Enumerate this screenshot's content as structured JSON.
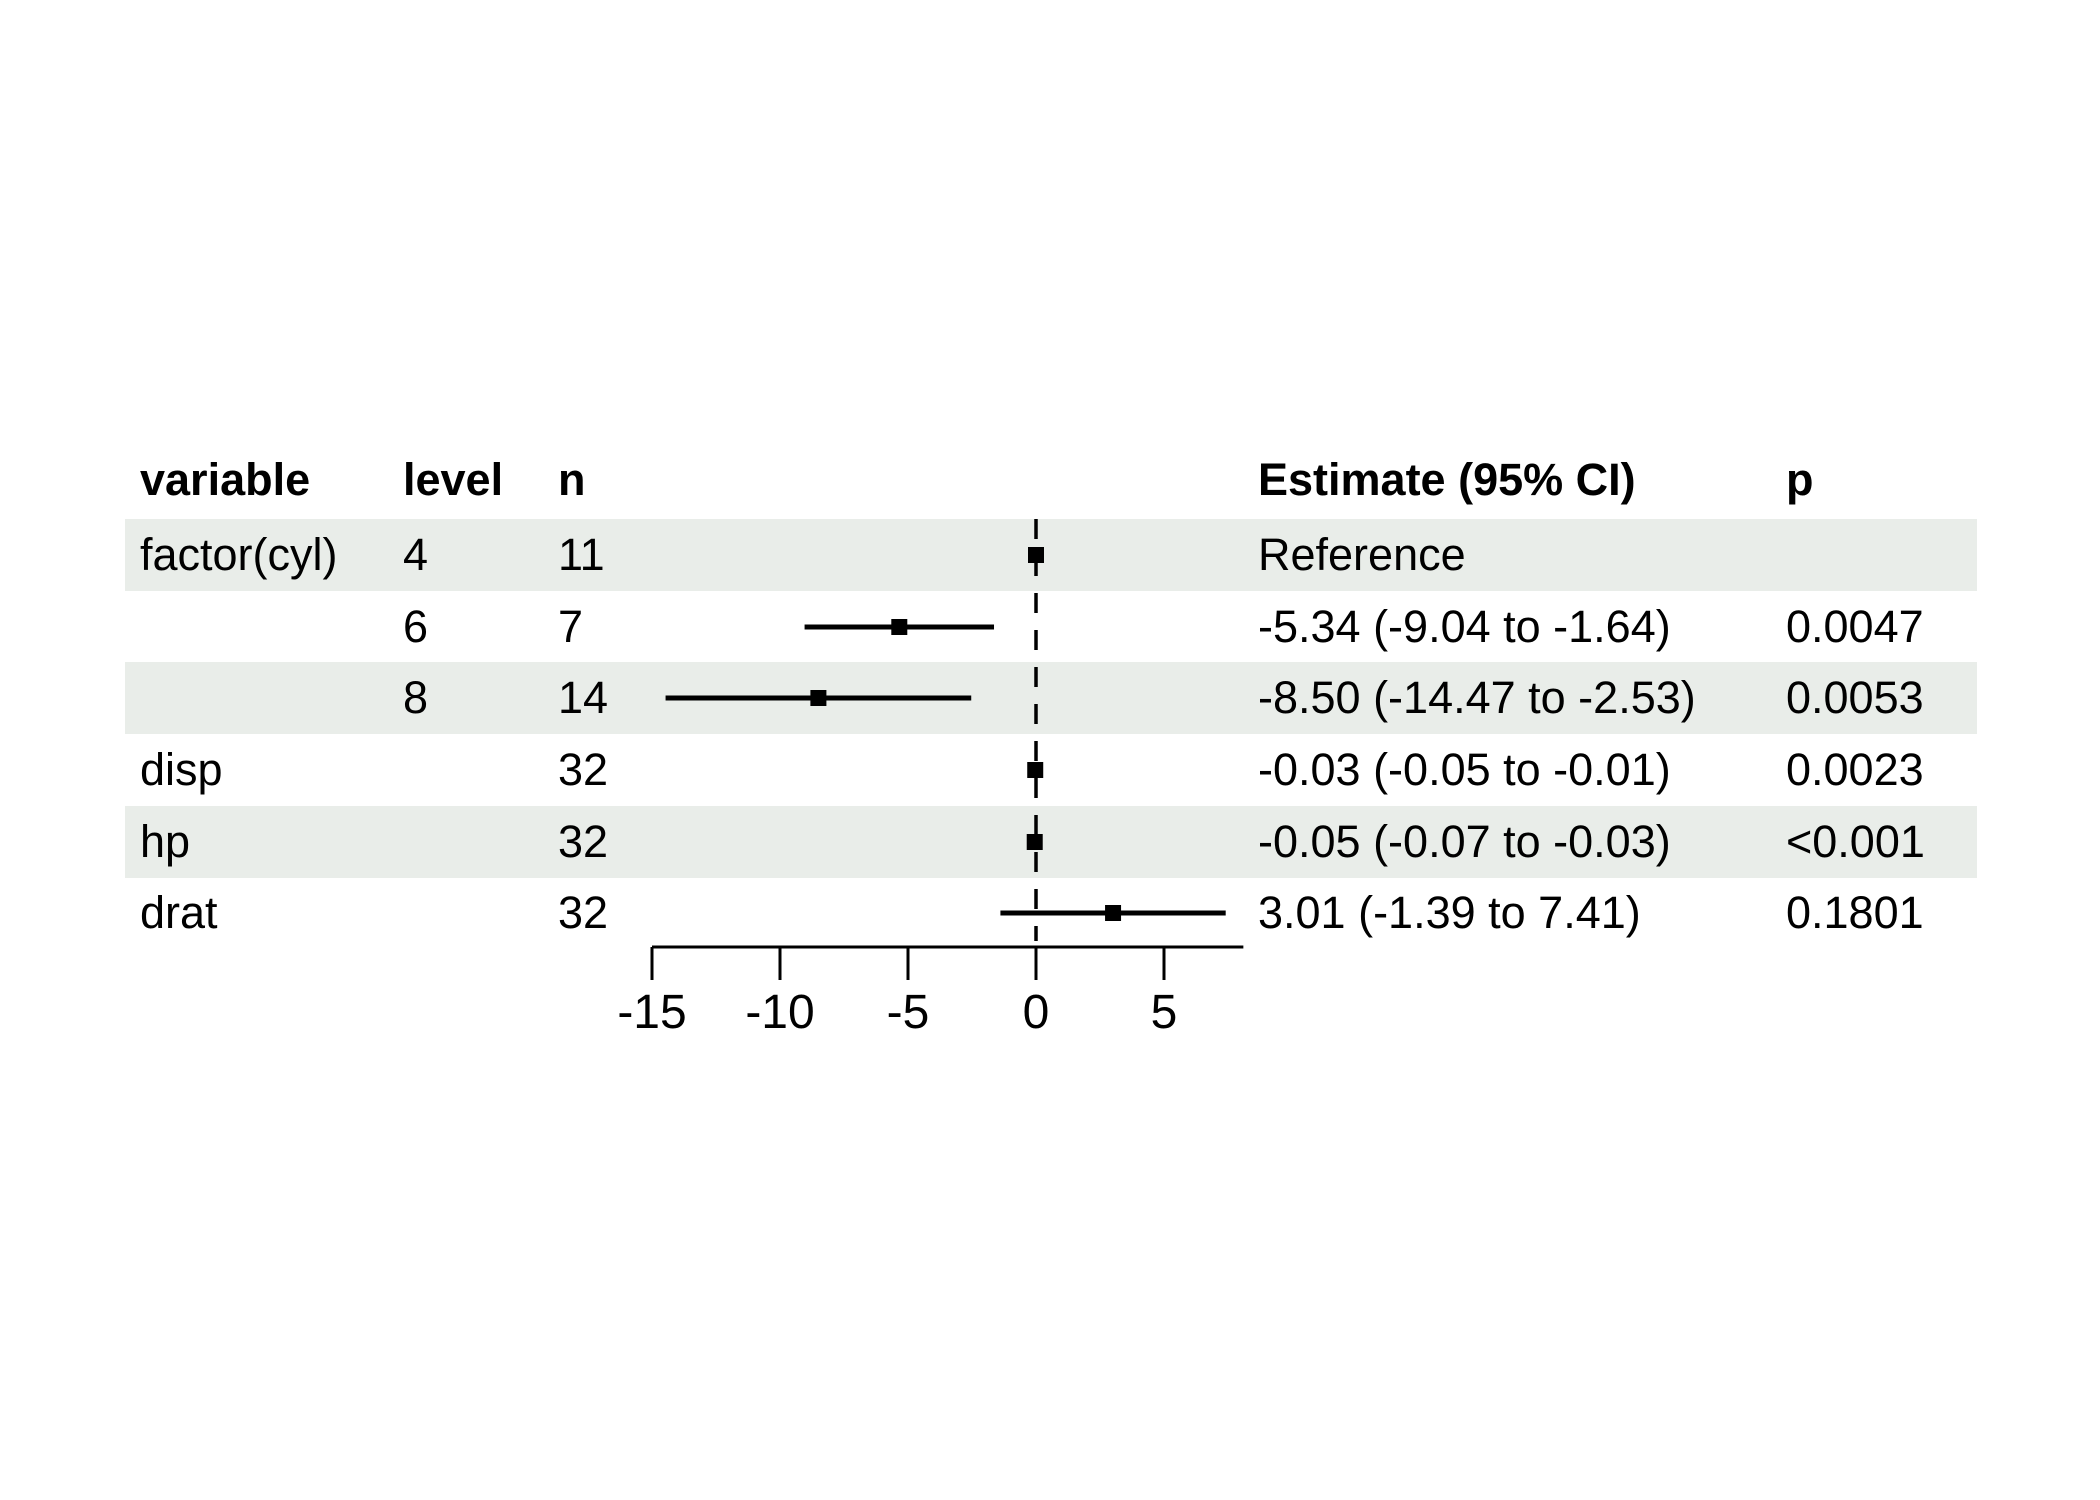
{
  "figure": {
    "background_color": "#ffffff",
    "row_shade_color": "#e9ede9",
    "ink_color": "#000000"
  },
  "table": {
    "columns": [
      {
        "id": "variable",
        "label": "variable"
      },
      {
        "id": "level",
        "label": "level"
      },
      {
        "id": "n",
        "label": "n"
      },
      {
        "id": "estimate",
        "label": "Estimate (95% CI)"
      },
      {
        "id": "p",
        "label": "p"
      }
    ]
  },
  "chart_data": {
    "type": "forest",
    "title": "",
    "xlabel": "",
    "x_ticks": [
      -15,
      -10,
      -5,
      0,
      5
    ],
    "x_axis_range": [
      -15,
      8.1
    ],
    "reference_line_x": 0,
    "grid": false,
    "rows": [
      {
        "variable": "factor(cyl)",
        "level": "4",
        "n": "11",
        "estimate": 0,
        "ci_low": null,
        "ci_high": null,
        "estimate_label": "Reference",
        "p": "",
        "shaded": true,
        "is_reference": true
      },
      {
        "variable": "",
        "level": "6",
        "n": "7",
        "estimate": -5.34,
        "ci_low": -9.04,
        "ci_high": -1.64,
        "estimate_label": "-5.34 (-9.04 to -1.64)",
        "p": "0.0047",
        "shaded": false,
        "is_reference": false
      },
      {
        "variable": "",
        "level": "8",
        "n": "14",
        "estimate": -8.5,
        "ci_low": -14.47,
        "ci_high": -2.53,
        "estimate_label": "-8.50 (-14.47 to -2.53)",
        "p": "0.0053",
        "shaded": true,
        "is_reference": false
      },
      {
        "variable": "disp",
        "level": "",
        "n": "32",
        "estimate": -0.03,
        "ci_low": -0.05,
        "ci_high": -0.01,
        "estimate_label": "-0.03 (-0.05 to -0.01)",
        "p": "0.0023",
        "shaded": false,
        "is_reference": false
      },
      {
        "variable": "hp",
        "level": "",
        "n": "32",
        "estimate": -0.05,
        "ci_low": -0.07,
        "ci_high": -0.03,
        "estimate_label": "-0.05 (-0.07 to -0.03)",
        "p": "<0.001",
        "shaded": true,
        "is_reference": false
      },
      {
        "variable": "drat",
        "level": "",
        "n": "32",
        "estimate": 3.01,
        "ci_low": -1.39,
        "ci_high": 7.41,
        "estimate_label": "3.01 (-1.39 to 7.41)",
        "p": "0.1801",
        "shaded": false,
        "is_reference": false
      }
    ]
  }
}
